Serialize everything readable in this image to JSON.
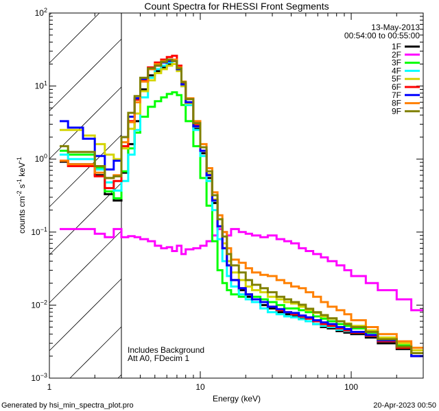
{
  "chart_data": {
    "type": "line",
    "style": "step-histogram",
    "title": "Count Spectra for RHESSI Front Segments",
    "xlabel": "Energy (keV)",
    "ylabel": "counts cm^-2 s^-1 keV^-1",
    "ylabel_parts": {
      "a": "counts cm",
      "b": "-2",
      "c": " s",
      "d": "-1",
      "e": " keV",
      "f": "-1"
    },
    "xscale": "log",
    "yscale": "log",
    "xlim": [
      1,
      300
    ],
    "ylim": [
      0.001,
      100
    ],
    "x_tick_labels": [
      {
        "value": 1,
        "label": "1"
      },
      {
        "value": 10,
        "label": "10"
      },
      {
        "value": 100,
        "label": "100"
      }
    ],
    "y_tick_labels": [
      {
        "value": 100,
        "base": "10",
        "exp": "2"
      },
      {
        "value": 10,
        "base": "10",
        "exp": "1"
      },
      {
        "value": 1,
        "base": "10",
        "exp": "0"
      },
      {
        "value": 0.1,
        "base": "10",
        "exp": "−1"
      },
      {
        "value": 0.01,
        "base": "10",
        "exp": "−2"
      },
      {
        "value": 0.001,
        "base": "10",
        "exp": "−3"
      }
    ],
    "excluded_region_keV": [
      1,
      3
    ],
    "legend": {
      "placement": "top-right",
      "date": "13-May-2013",
      "time_range": "00:54:00 to 00:55:00"
    },
    "annotations": [
      "Includes Background",
      "Att A0, FDecim 1"
    ],
    "energy_bin_edges": [
      1.17,
      1.33,
      1.67,
      2.0,
      2.33,
      2.67,
      3.0,
      3.33,
      3.67,
      4.0,
      4.5,
      5.0,
      5.5,
      6.0,
      6.5,
      7.0,
      7.5,
      8,
      9,
      10,
      11,
      12,
      13,
      14,
      15,
      16,
      18,
      20,
      22,
      25,
      28,
      32,
      36,
      40,
      45,
      50,
      56,
      63,
      70,
      80,
      90,
      100,
      125,
      150,
      200,
      250,
      300
    ],
    "series": [
      {
        "name": "1F",
        "color": "#000000",
        "values": [
          0.92,
          0.85,
          0.85,
          0.6,
          0.33,
          0.27,
          0.65,
          1.6,
          3.3,
          9,
          14,
          16,
          18,
          20,
          22,
          17,
          10,
          5.5,
          2.6,
          1.2,
          0.55,
          0.25,
          0.11,
          0.06,
          0.035,
          0.022,
          0.016,
          0.013,
          0.011,
          0.01,
          0.009,
          0.008,
          0.0075,
          0.007,
          0.0065,
          0.006,
          0.0055,
          0.005,
          0.0048,
          0.0044,
          0.0042,
          0.004,
          0.0036,
          0.003,
          0.0025,
          0.002
        ]
      },
      {
        "name": "2F",
        "color": "#ff00ff",
        "values": [
          0.11,
          0.11,
          0.11,
          0.095,
          0.085,
          0.11,
          0.085,
          0.088,
          0.085,
          0.08,
          0.075,
          0.065,
          0.06,
          0.062,
          0.055,
          0.065,
          0.05,
          0.058,
          0.06,
          0.065,
          0.075,
          0.09,
          0.11,
          0.1,
          0.09,
          0.11,
          0.1,
          0.095,
          0.09,
          0.085,
          0.09,
          0.08,
          0.075,
          0.07,
          0.06,
          0.055,
          0.05,
          0.045,
          0.04,
          0.035,
          0.03,
          0.025,
          0.02,
          0.016,
          0.012,
          0.0085
        ]
      },
      {
        "name": "3F",
        "color": "#00ff00",
        "values": [
          1.3,
          1.15,
          1.15,
          0.75,
          0.36,
          0.29,
          0.68,
          1.4,
          2.3,
          3.8,
          5.2,
          6.2,
          7,
          7.8,
          8.2,
          7.5,
          5.5,
          3.3,
          1.5,
          0.55,
          0.23,
          0.075,
          0.03,
          0.02,
          0.016,
          0.014,
          0.013,
          0.014,
          0.013,
          0.012,
          0.011,
          0.01,
          0.009,
          0.009,
          0.0085,
          0.008,
          0.007,
          0.0065,
          0.006,
          0.0055,
          0.0052,
          0.0048,
          0.0042,
          0.0035,
          0.0028,
          0.0022
        ]
      },
      {
        "name": "4F",
        "color": "#00ffff",
        "values": [
          1.15,
          1.0,
          1.0,
          0.72,
          0.48,
          0.37,
          0.5,
          1.15,
          2.5,
          7,
          13,
          17,
          19,
          21,
          23,
          18,
          10,
          5.5,
          2.5,
          1.1,
          0.5,
          0.2,
          0.08,
          0.04,
          0.025,
          0.018,
          0.014,
          0.012,
          0.011,
          0.009,
          0.008,
          0.0075,
          0.007,
          0.0068,
          0.0064,
          0.006,
          0.0055,
          0.0052,
          0.005,
          0.0046,
          0.0044,
          0.0042,
          0.0038,
          0.0032,
          0.0026,
          0.002
        ]
      },
      {
        "name": "5F",
        "color": "#d4d400",
        "values": [
          2.5,
          2.5,
          2.1,
          1.6,
          1.15,
          1.0,
          1.4,
          2.6,
          4.2,
          8.5,
          12,
          15,
          17,
          19,
          20,
          16,
          10,
          5.8,
          2.8,
          1.3,
          0.62,
          0.28,
          0.12,
          0.07,
          0.04,
          0.028,
          0.022,
          0.018,
          0.016,
          0.015,
          0.013,
          0.012,
          0.011,
          0.0105,
          0.0095,
          0.0085,
          0.0078,
          0.007,
          0.0065,
          0.006,
          0.0056,
          0.0052,
          0.0045,
          0.0036,
          0.003,
          0.0024
        ]
      },
      {
        "name": "6F",
        "color": "#ff0000",
        "values": [
          0.95,
          0.8,
          0.8,
          0.58,
          0.4,
          0.5,
          1.5,
          3.3,
          6.5,
          12,
          18,
          21,
          23,
          25,
          26,
          19,
          11,
          6,
          2.9,
          1.3,
          0.6,
          0.27,
          0.12,
          0.06,
          0.035,
          0.022,
          0.017,
          0.014,
          0.012,
          0.011,
          0.0095,
          0.0085,
          0.008,
          0.0075,
          0.007,
          0.0065,
          0.006,
          0.0055,
          0.0052,
          0.0048,
          0.0045,
          0.0042,
          0.0038,
          0.0032,
          0.0026,
          0.002
        ]
      },
      {
        "name": "7F",
        "color": "#0000ff",
        "values": [
          3.3,
          2.7,
          1.9,
          1.1,
          0.72,
          0.95,
          2.0,
          3.8,
          6.8,
          12.5,
          17,
          19,
          21,
          22,
          22,
          17,
          10.5,
          6,
          2.8,
          1.3,
          0.6,
          0.27,
          0.12,
          0.06,
          0.035,
          0.022,
          0.017,
          0.014,
          0.012,
          0.011,
          0.0095,
          0.0088,
          0.008,
          0.0078,
          0.0072,
          0.0068,
          0.0062,
          0.0058,
          0.0055,
          0.005,
          0.0047,
          0.0043,
          0.0039,
          0.0033,
          0.0027,
          0.002
        ]
      },
      {
        "name": "8F",
        "color": "#ff8000",
        "values": [
          0.95,
          0.85,
          0.85,
          0.65,
          0.55,
          0.6,
          1.7,
          3.2,
          6,
          11.5,
          17,
          20,
          22,
          23,
          23,
          18,
          11.5,
          6.8,
          3.3,
          1.6,
          0.75,
          0.35,
          0.17,
          0.1,
          0.06,
          0.042,
          0.038,
          0.032,
          0.028,
          0.026,
          0.025,
          0.022,
          0.02,
          0.018,
          0.017,
          0.015,
          0.013,
          0.011,
          0.0095,
          0.0085,
          0.0075,
          0.0062,
          0.005,
          0.004,
          0.0032,
          0.0026
        ]
      },
      {
        "name": "9F",
        "color": "#808000",
        "values": [
          1.5,
          1.25,
          1.25,
          0.8,
          0.55,
          0.58,
          2.0,
          4.3,
          7.3,
          13,
          17.5,
          19,
          21.5,
          23,
          22,
          17.5,
          11.3,
          6.6,
          3.1,
          1.45,
          0.68,
          0.32,
          0.15,
          0.087,
          0.05,
          0.035,
          0.028,
          0.022,
          0.019,
          0.017,
          0.015,
          0.013,
          0.012,
          0.011,
          0.0101,
          0.0089,
          0.008,
          0.0073,
          0.0066,
          0.006,
          0.0055,
          0.005,
          0.0043,
          0.0034,
          0.0027,
          0.0022
        ]
      }
    ]
  },
  "footer": {
    "generated_by": "Generated by hsi_min_spectra_plot.pro",
    "timestamp": "20-Apr-2023 00:50"
  }
}
